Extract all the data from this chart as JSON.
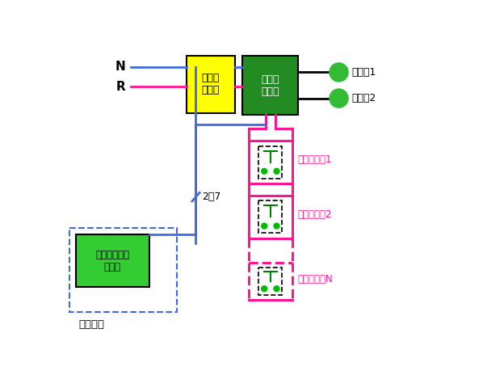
{
  "background_color": "#ffffff",
  "wire_color_blue": "#4169E1",
  "wire_color_pink": "#FF1493",
  "wire_color_black": "#000000",
  "wire_color_green": "#008000",
  "dual_power_box": {
    "label": "双电源\n切换箱",
    "fc": "#FFFF00",
    "ec": "#000000"
  },
  "fire_pump_cabinet": {
    "label": "消防泵\n电控柜",
    "fc": "#228B22",
    "ec": "#000000",
    "tc": "#FFFFFF"
  },
  "fire_alarm_box": {
    "label": "火灾自动报警\n控制柜",
    "fc": "#33CC33",
    "ec": "#000000"
  },
  "pumps": [
    "消防泵1",
    "消防泵2"
  ],
  "btn_labels": [
    "消火栓按纽1",
    "消火栓按纽2",
    "消火栓按纽N"
  ],
  "label_2to7": "2～7",
  "label_center": "消防中心"
}
